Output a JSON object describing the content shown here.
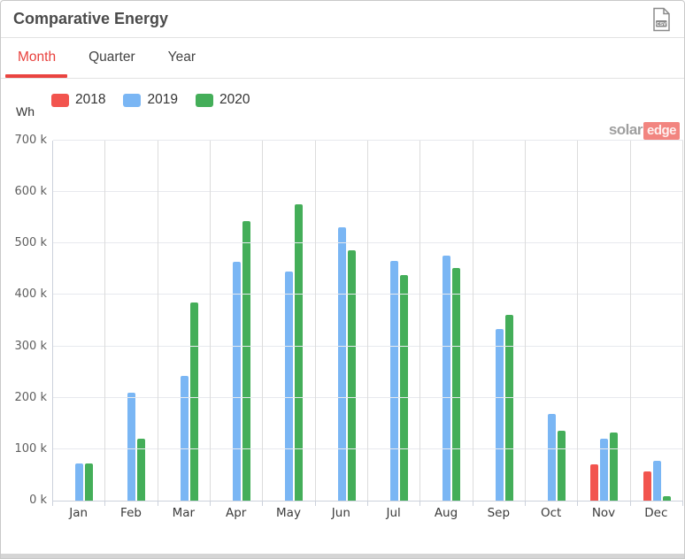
{
  "header": {
    "title": "Comparative Energy"
  },
  "tabs": {
    "items": [
      {
        "label": "Month",
        "active": true
      },
      {
        "label": "Quarter",
        "active": false
      },
      {
        "label": "Year",
        "active": false
      }
    ]
  },
  "watermark": {
    "part1": "solar",
    "part2": "edge"
  },
  "icons": {
    "csv_export": "csv-file-icon"
  },
  "colors": {
    "accent_red": "#e8403c",
    "series_2018": "#f2544e",
    "series_2019": "#7ab6f4",
    "series_2020": "#44ae59"
  },
  "chart_data": {
    "type": "bar",
    "title": "Comparative Energy",
    "unit_label": "Wh",
    "categories": [
      "Jan",
      "Feb",
      "Mar",
      "Apr",
      "May",
      "Jun",
      "Jul",
      "Aug",
      "Sep",
      "Oct",
      "Nov",
      "Dec"
    ],
    "series": [
      {
        "name": "2018",
        "color": "#f2544e",
        "values": [
          null,
          null,
          null,
          null,
          null,
          null,
          null,
          null,
          null,
          null,
          71000,
          57000
        ]
      },
      {
        "name": "2019",
        "color": "#7ab6f4",
        "values": [
          72000,
          209000,
          243000,
          464000,
          445000,
          531000,
          466000,
          477000,
          333000,
          169000,
          121000,
          78000
        ]
      },
      {
        "name": "2020",
        "color": "#44ae59",
        "values": [
          73000,
          120000,
          385000,
          544000,
          576000,
          486000,
          439000,
          452000,
          361000,
          136000,
          133000,
          8000
        ]
      }
    ],
    "y_ticks": [
      "0 k",
      "100 k",
      "200 k",
      "300 k",
      "400 k",
      "500 k",
      "600 k",
      "700 k"
    ],
    "ylim": [
      0,
      700000
    ],
    "grid": true,
    "legend_position": "top"
  }
}
